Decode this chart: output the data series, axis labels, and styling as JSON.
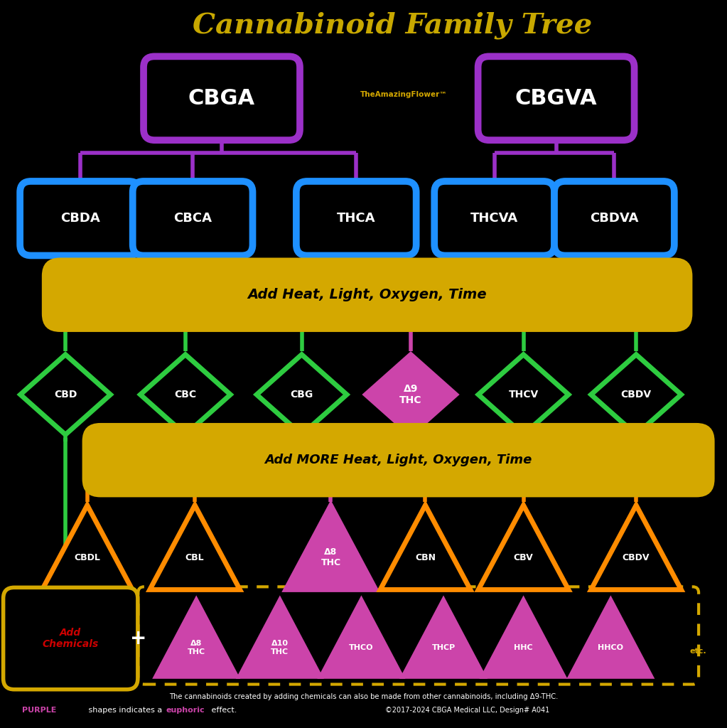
{
  "title": "Cannabinoid Family Tree",
  "title_color": "#C8A800",
  "bg_color": "#000000",
  "white": "#FFFFFF",
  "purple": "#9B30C8",
  "blue": "#1E90FF",
  "green": "#2ECC40",
  "gold": "#D4A800",
  "orange": "#FF8C00",
  "magenta": "#CC44AA",
  "red": "#CC0000",
  "heat_bar1_text": "Add Heat, Light, Oxygen, Time",
  "heat_bar2_text": "Add MORE Heat, Light, Oxygen, Time",
  "footer_text": "The cannabinoids created by adding chemicals can also be made from other cannabinoids, including Δ9-THC.",
  "footer_purple": "PURPLE",
  "footer_euphoric": "euphoric",
  "footer_shapes_note": " shapes indicates a ",
  "footer_effect": " effect.",
  "copyright": "©2017-2024 CBGA Medical LLC, Design# A041"
}
